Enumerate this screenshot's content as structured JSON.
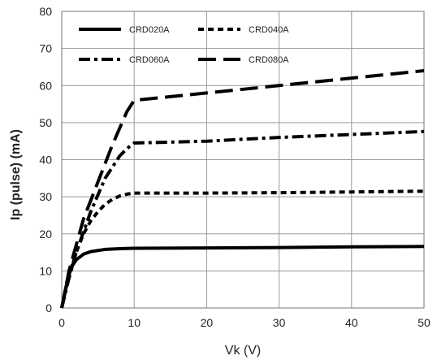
{
  "chart_data": {
    "type": "line",
    "title": "",
    "xlabel": "Vk (V)",
    "ylabel": "Ip (pulse)  (mA)",
    "xlim": [
      0,
      50
    ],
    "ylim": [
      0,
      80
    ],
    "xticks": [
      0,
      10,
      20,
      30,
      40,
      50
    ],
    "yticks": [
      0,
      10,
      20,
      30,
      40,
      50,
      60,
      70,
      80
    ],
    "grid": true,
    "legend_position": "top",
    "series": [
      {
        "name": "CRD020A",
        "dash": "solid",
        "color": "#000000",
        "points": [
          [
            0,
            0
          ],
          [
            0.5,
            5
          ],
          [
            1,
            9
          ],
          [
            1.5,
            11.5
          ],
          [
            2,
            13
          ],
          [
            3,
            14.5
          ],
          [
            4,
            15.2
          ],
          [
            6,
            15.8
          ],
          [
            8,
            16
          ],
          [
            10,
            16.1
          ],
          [
            20,
            16.2
          ],
          [
            30,
            16.3
          ],
          [
            40,
            16.5
          ],
          [
            50,
            16.6
          ]
        ]
      },
      {
        "name": "CRD040A",
        "dash": "short-dash",
        "color": "#000000",
        "points": [
          [
            0,
            0
          ],
          [
            1,
            9
          ],
          [
            2,
            15
          ],
          [
            3,
            20
          ],
          [
            4,
            23.5
          ],
          [
            5,
            26
          ],
          [
            6,
            28
          ],
          [
            7,
            29.3
          ],
          [
            8,
            30.2
          ],
          [
            9,
            30.7
          ],
          [
            10,
            31
          ],
          [
            20,
            31
          ],
          [
            30,
            31.1
          ],
          [
            40,
            31.3
          ],
          [
            50,
            31.5
          ]
        ]
      },
      {
        "name": "CRD060A",
        "dash": "dash-dot",
        "color": "#000000",
        "points": [
          [
            0,
            0
          ],
          [
            1,
            8
          ],
          [
            2,
            15
          ],
          [
            4,
            26
          ],
          [
            6,
            35
          ],
          [
            8,
            41
          ],
          [
            9,
            43
          ],
          [
            10,
            44.5
          ],
          [
            20,
            45
          ],
          [
            30,
            46
          ],
          [
            40,
            46.8
          ],
          [
            50,
            47.6
          ]
        ]
      },
      {
        "name": "CRD080A",
        "dash": "long-dash",
        "color": "#000000",
        "points": [
          [
            0,
            0
          ],
          [
            1,
            10
          ],
          [
            3,
            24
          ],
          [
            5,
            34
          ],
          [
            7,
            44
          ],
          [
            9,
            53
          ],
          [
            10,
            56
          ],
          [
            20,
            58
          ],
          [
            30,
            60
          ],
          [
            40,
            62
          ],
          [
            50,
            64
          ]
        ]
      }
    ]
  }
}
